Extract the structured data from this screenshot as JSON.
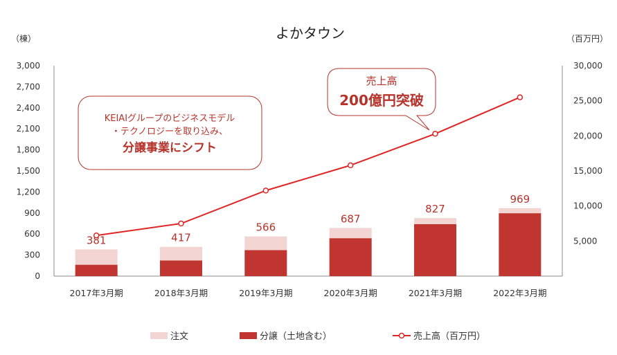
{
  "colors": {
    "order": "#f2d4d3",
    "bunjo": "#c0352f",
    "sales_line": "#e02424",
    "axis": "#888888",
    "text_red": "#b5332b"
  },
  "chart_data": {
    "type": "bar",
    "title": "よかタウン",
    "categories": [
      "2017年3月期",
      "2018年3月期",
      "2019年3月期",
      "2020年3月期",
      "2021年3月期",
      "2022年3月期"
    ],
    "series": [
      {
        "name": "注文",
        "values": [
          219,
          193,
          195,
          146,
          85,
          72
        ]
      },
      {
        "name": "分譲（土地含む）",
        "values": [
          162,
          224,
          371,
          541,
          742,
          897
        ]
      },
      {
        "name": "売上高（百万円）",
        "values": [
          5800,
          7500,
          12200,
          15800,
          20300,
          25500
        ],
        "axis": "right",
        "type": "line"
      }
    ],
    "totals": [
      381,
      417,
      566,
      687,
      827,
      969
    ],
    "total_labels": [
      "381",
      "417",
      "566",
      "687",
      "827",
      "969"
    ],
    "ylabel_left": "（棟）",
    "ylabel_right": "（百万円）",
    "ylim_left": [
      0,
      3000
    ],
    "ylim_right": [
      0,
      30000
    ],
    "yticks_left": [
      "0",
      "300",
      "600",
      "900",
      "1,200",
      "1,500",
      "1,800",
      "2,100",
      "2,400",
      "2,700",
      "3,000"
    ],
    "yticks_right": [
      "5,000",
      "10,000",
      "15,000",
      "20,000",
      "25,000",
      "30,000"
    ],
    "yticks_right_values": [
      5000,
      10000,
      15000,
      20000,
      25000,
      30000
    ],
    "legend": [
      "注文",
      "分譲（土地含む）",
      "売上高（百万円）"
    ],
    "annotations": [
      {
        "lines": [
          "KEIAIグループのビジネスモデル",
          "・テクノロジーを取り込み、"
        ],
        "emphasis": "分譲事業にシフト"
      },
      {
        "lines": [
          "売上高"
        ],
        "emphasis": "200億円突破"
      }
    ]
  }
}
